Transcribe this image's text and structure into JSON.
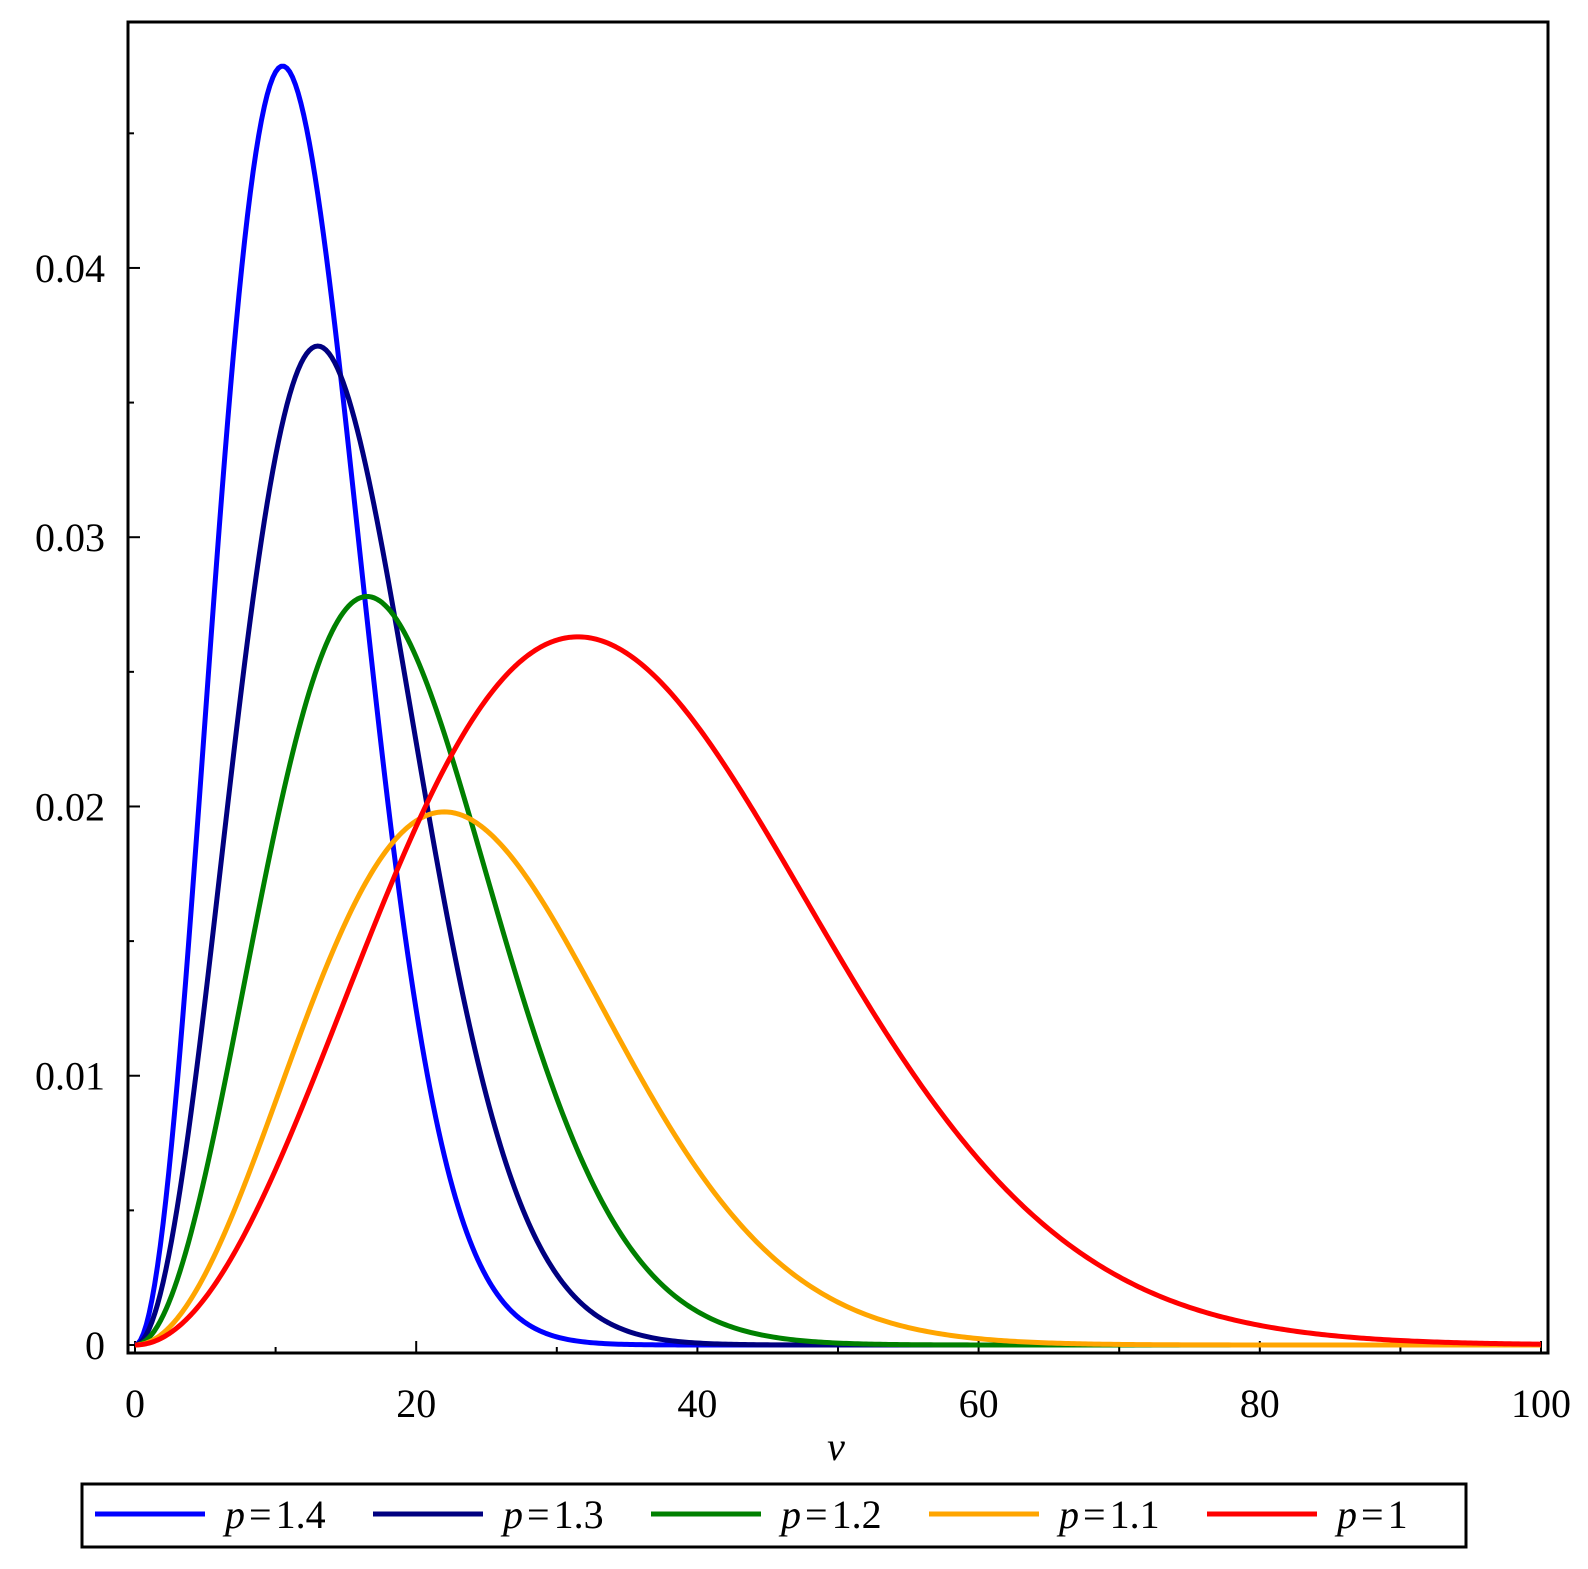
{
  "chart_data": {
    "type": "line",
    "title": "",
    "xlabel": "v",
    "ylabel": "",
    "xlim": [
      0,
      100
    ],
    "ylim": [
      0,
      0.0475
    ],
    "grid": false,
    "legend_position": "bottom",
    "x_ticks": [
      {
        "value": 0,
        "label": "0"
      },
      {
        "value": 20,
        "label": "20"
      },
      {
        "value": 40,
        "label": "40"
      },
      {
        "value": 60,
        "label": "60"
      },
      {
        "value": 80,
        "label": "80"
      },
      {
        "value": 100,
        "label": "100"
      }
    ],
    "x_minor_ticks": [
      10,
      30,
      50,
      70,
      90
    ],
    "y_ticks": [
      {
        "value": 0,
        "label": "0"
      },
      {
        "value": 0.01,
        "label": "0.01"
      },
      {
        "value": 0.02,
        "label": "0.02"
      },
      {
        "value": 0.03,
        "label": "0.03"
      },
      {
        "value": 0.04,
        "label": "0.04"
      }
    ],
    "y_minor_ticks": [
      0.005,
      0.015,
      0.025,
      0.035,
      0.045
    ],
    "series": [
      {
        "name": "p = 1.4",
        "legend_var": "p",
        "legend_eq": "=",
        "legend_val": "1.4",
        "color": "#0000ff",
        "peak_x": 10.5,
        "peak_y": 0.0475,
        "shape": 2
      },
      {
        "name": "p = 1.3",
        "legend_var": "p",
        "legend_eq": "=",
        "legend_val": "1.3",
        "color": "#000080",
        "peak_x": 13.0,
        "peak_y": 0.0371,
        "shape": 2
      },
      {
        "name": "p = 1.2",
        "legend_var": "p",
        "legend_eq": "=",
        "legend_val": "1.2",
        "color": "#008000",
        "peak_x": 16.5,
        "peak_y": 0.0278,
        "shape": 2
      },
      {
        "name": "p = 1.1",
        "legend_var": "p",
        "legend_eq": "=",
        "legend_val": "1.1",
        "color": "#ffa500",
        "peak_x": 22.0,
        "peak_y": 0.0198,
        "shape": 2
      },
      {
        "name": "p = 1",
        "legend_var": "p",
        "legend_eq": "=",
        "legend_val": "1",
        "color": "#ff0000",
        "peak_x": 31.5,
        "peak_y": 0.0263,
        "shape": 2
      }
    ]
  }
}
